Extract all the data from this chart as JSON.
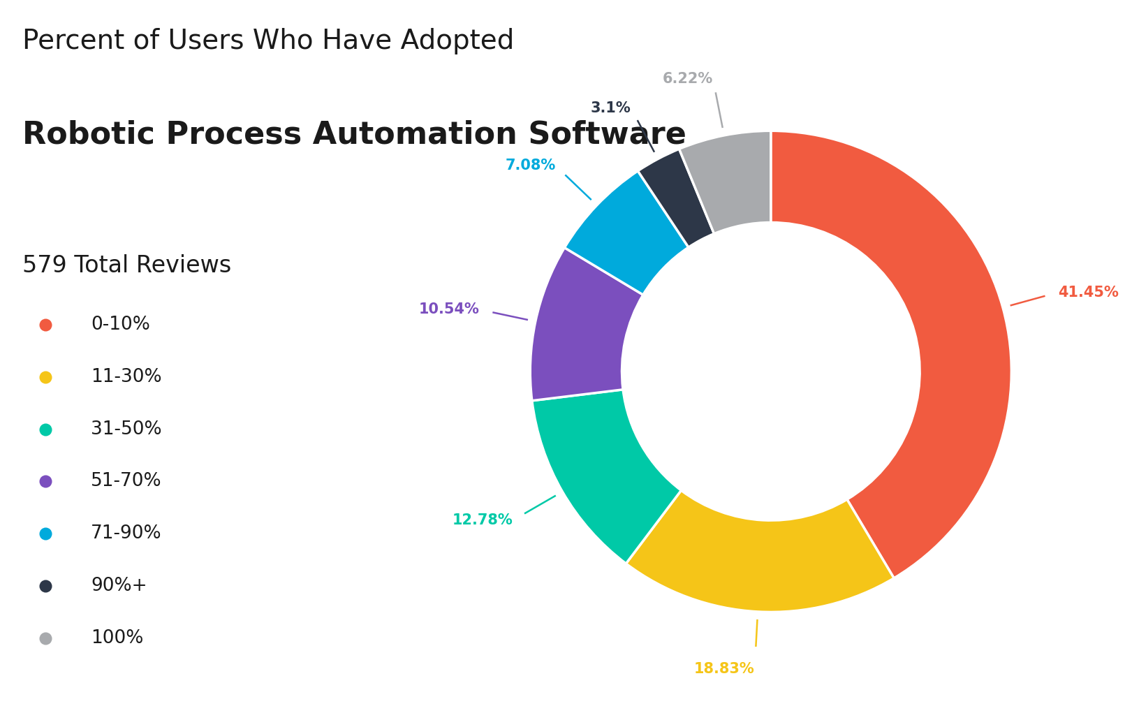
{
  "title_line1": "Percent of Users Who Have Adopted",
  "title_line2": "Robotic Process Automation Software",
  "total_reviews": "579 Total Reviews",
  "categories": [
    "0-10%",
    "11-30%",
    "31-50%",
    "51-70%",
    "71-90%",
    "90%+",
    "100%"
  ],
  "values": [
    41.45,
    18.83,
    12.78,
    10.54,
    7.08,
    3.1,
    6.22
  ],
  "colors": [
    "#F15B40",
    "#F5C518",
    "#00C9A7",
    "#7B4FBE",
    "#00AADC",
    "#2D3748",
    "#A8AAAD"
  ],
  "label_colors": [
    "#F15B40",
    "#F5C518",
    "#00C9A7",
    "#7B4FBE",
    "#00AADC",
    "#2D3748",
    "#A8AAAD"
  ],
  "labels": [
    "41.45%",
    "18.83%",
    "12.78%",
    "10.54%",
    "7.08%",
    "3.1%",
    "6.22%"
  ],
  "background_color": "#FFFFFF",
  "start_angle": 90
}
